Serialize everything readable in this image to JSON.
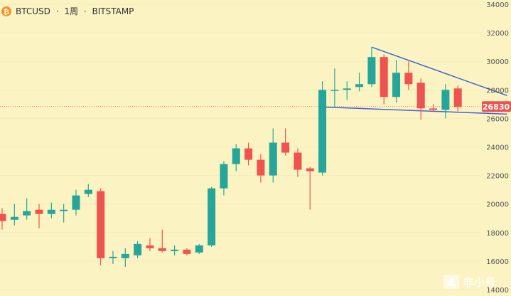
{
  "header": {
    "symbol": "BTCUSD",
    "separator": "·",
    "interval": "1周",
    "exchange": "BITSTAMP",
    "coin_icon_color": "#f7931a"
  },
  "watermark": {
    "text": "非小号",
    "icon": "flame-logo-icon"
  },
  "colors": {
    "up": "#26a69a",
    "down": "#ef5350",
    "trendline": "#3f63d9",
    "price_line": "#e57373",
    "price_tag": "#ef5350",
    "background": "#fbf3c2"
  },
  "chart_data": {
    "type": "candlestick",
    "title": "",
    "xlabel": "",
    "ylabel": "",
    "ylim": [
      14000,
      34000
    ],
    "yticks": [
      "34000",
      "32000",
      "30000",
      "28000",
      "26000",
      "24000",
      "22000",
      "20000",
      "18000",
      "16000",
      "14000"
    ],
    "last_price": "26830",
    "series": [
      {
        "o": 19300,
        "h": 19700,
        "l": 18200,
        "c": 18800
      },
      {
        "o": 18900,
        "h": 20000,
        "l": 18500,
        "c": 19100
      },
      {
        "o": 19200,
        "h": 20400,
        "l": 18900,
        "c": 19500
      },
      {
        "o": 19600,
        "h": 20000,
        "l": 18300,
        "c": 19300
      },
      {
        "o": 19300,
        "h": 20100,
        "l": 19000,
        "c": 19600
      },
      {
        "o": 19500,
        "h": 20000,
        "l": 18700,
        "c": 19600
      },
      {
        "o": 19600,
        "h": 21000,
        "l": 19200,
        "c": 20600
      },
      {
        "o": 20700,
        "h": 21400,
        "l": 20500,
        "c": 21000
      },
      {
        "o": 20900,
        "h": 21100,
        "l": 15700,
        "c": 16200
      },
      {
        "o": 16200,
        "h": 16700,
        "l": 15800,
        "c": 16300
      },
      {
        "o": 16200,
        "h": 16900,
        "l": 15600,
        "c": 16500
      },
      {
        "o": 16400,
        "h": 17400,
        "l": 16200,
        "c": 17200
      },
      {
        "o": 17100,
        "h": 17600,
        "l": 16700,
        "c": 16900
      },
      {
        "o": 16900,
        "h": 18200,
        "l": 16600,
        "c": 16700
      },
      {
        "o": 16700,
        "h": 17100,
        "l": 16400,
        "c": 16800
      },
      {
        "o": 16800,
        "h": 16900,
        "l": 16400,
        "c": 16500
      },
      {
        "o": 16600,
        "h": 17200,
        "l": 16500,
        "c": 17100
      },
      {
        "o": 17100,
        "h": 21200,
        "l": 17000,
        "c": 21100
      },
      {
        "o": 21100,
        "h": 23000,
        "l": 20600,
        "c": 22800
      },
      {
        "o": 22800,
        "h": 24200,
        "l": 22300,
        "c": 23900
      },
      {
        "o": 23900,
        "h": 24300,
        "l": 22700,
        "c": 23100
      },
      {
        "o": 23100,
        "h": 23500,
        "l": 21500,
        "c": 22000
      },
      {
        "o": 22000,
        "h": 25300,
        "l": 21500,
        "c": 24300
      },
      {
        "o": 24300,
        "h": 25300,
        "l": 23400,
        "c": 23600
      },
      {
        "o": 23600,
        "h": 23900,
        "l": 21900,
        "c": 22400
      },
      {
        "o": 22500,
        "h": 22600,
        "l": 19600,
        "c": 22300
      },
      {
        "o": 22200,
        "h": 28600,
        "l": 22000,
        "c": 28000
      },
      {
        "o": 28000,
        "h": 29500,
        "l": 26800,
        "c": 28000
      },
      {
        "o": 28000,
        "h": 28600,
        "l": 27300,
        "c": 28100
      },
      {
        "o": 28200,
        "h": 29200,
        "l": 27900,
        "c": 28400
      },
      {
        "o": 28400,
        "h": 31000,
        "l": 28200,
        "c": 30300
      },
      {
        "o": 30300,
        "h": 30500,
        "l": 27000,
        "c": 27500
      },
      {
        "o": 27500,
        "h": 30100,
        "l": 27100,
        "c": 29200
      },
      {
        "o": 29200,
        "h": 30000,
        "l": 28000,
        "c": 28400
      },
      {
        "o": 28500,
        "h": 28800,
        "l": 25900,
        "c": 26700
      },
      {
        "o": 26700,
        "h": 27000,
        "l": 26500,
        "c": 26600
      },
      {
        "o": 26600,
        "h": 28400,
        "l": 26000,
        "c": 28000
      },
      {
        "o": 28100,
        "h": 28300,
        "l": 26500,
        "c": 26800
      }
    ],
    "trendlines": [
      {
        "name": "",
        "points": [
          [
            30,
            31000
          ],
          [
            41,
            27600
          ]
        ]
      },
      {
        "name": "",
        "points": [
          [
            26,
            26800
          ],
          [
            41,
            26300
          ]
        ]
      }
    ]
  }
}
